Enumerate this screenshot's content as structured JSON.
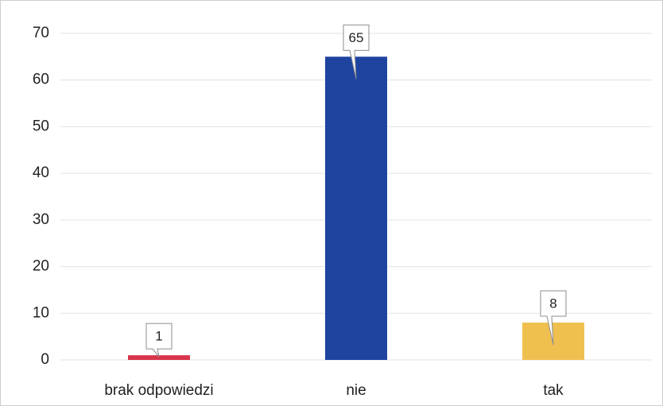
{
  "chart_data": {
    "type": "bar",
    "categories": [
      "brak odpowiedzi",
      "nie",
      "tak"
    ],
    "values": [
      1,
      65,
      8
    ],
    "colors": [
      "#d9344a",
      "#1e44a0",
      "#efc050"
    ],
    "ylim": [
      0,
      70
    ],
    "yticks": [
      0,
      10,
      20,
      30,
      40,
      50,
      60,
      70
    ],
    "grid": true
  }
}
